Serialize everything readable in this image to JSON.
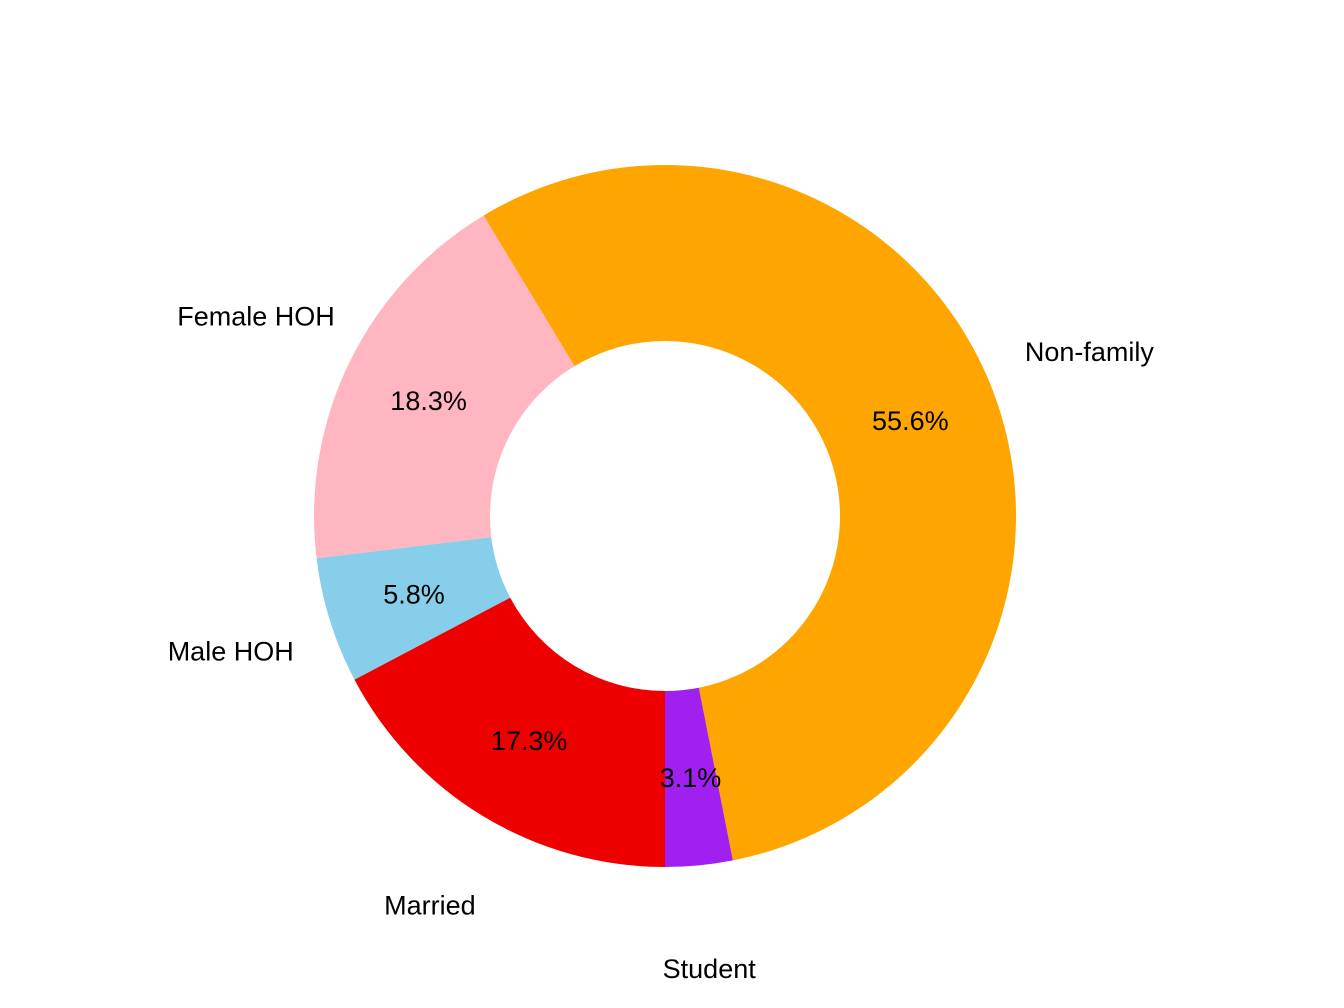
{
  "chart_data": {
    "type": "pie",
    "style": "donut",
    "title": "",
    "slices": [
      {
        "label": "Married",
        "value": 17.3,
        "pct_label": "17.3%",
        "color": "#EE0000"
      },
      {
        "label": "Male HOH",
        "value": 5.8,
        "pct_label": "5.8%",
        "color": "#87CEEB"
      },
      {
        "label": "Female HOH",
        "value": 18.3,
        "pct_label": "18.3%",
        "color": "#FFB6C1"
      },
      {
        "label": "Non-family",
        "value": 55.6,
        "pct_label": "55.6%",
        "color": "#FFA500"
      },
      {
        "label": "Student",
        "value": 3.1,
        "pct_label": "3.1%",
        "color": "#A020F0"
      }
    ],
    "direction": "clockwise",
    "start_position": "bottom",
    "legend": "none"
  }
}
